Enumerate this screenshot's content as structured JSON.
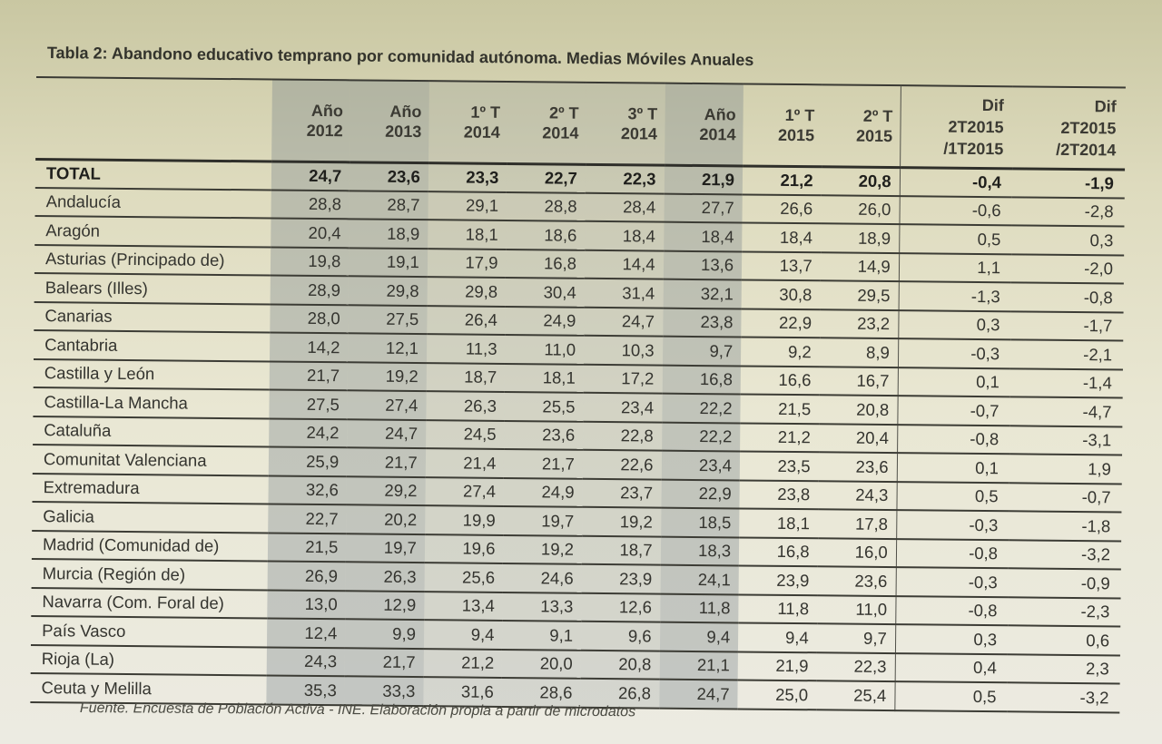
{
  "title": "Tabla 2: Abandono educativo temprano por comunidad autónoma. Medias Móviles Anuales",
  "columns": [
    {
      "l1": "Año",
      "l2": "2012"
    },
    {
      "l1": "Año",
      "l2": "2013"
    },
    {
      "l1": "1º T",
      "l2": "2014"
    },
    {
      "l1": "2º T",
      "l2": "2014"
    },
    {
      "l1": "3º T",
      "l2": "2014"
    },
    {
      "l1": "Año",
      "l2": "2014"
    },
    {
      "l1": "1º T",
      "l2": "2015"
    },
    {
      "l1": "2º T",
      "l2": "2015"
    }
  ],
  "dif_columns": [
    {
      "l1": "Dif",
      "l2": "2T2015",
      "l3": "/1T2015"
    },
    {
      "l1": "Dif",
      "l2": "2T2015",
      "l3": "/2T2014"
    }
  ],
  "rows": [
    {
      "name": "TOTAL",
      "v": [
        "24,7",
        "23,6",
        "23,3",
        "22,7",
        "22,3",
        "21,9",
        "21,2",
        "20,8",
        "-0,4",
        "-1,9"
      ]
    },
    {
      "name": "Andalucía",
      "v": [
        "28,8",
        "28,7",
        "29,1",
        "28,8",
        "28,4",
        "27,7",
        "26,6",
        "26,0",
        "-0,6",
        "-2,8"
      ]
    },
    {
      "name": "Aragón",
      "v": [
        "20,4",
        "18,9",
        "18,1",
        "18,6",
        "18,4",
        "18,4",
        "18,4",
        "18,9",
        "0,5",
        "0,3"
      ]
    },
    {
      "name": "Asturias (Principado de)",
      "v": [
        "19,8",
        "19,1",
        "17,9",
        "16,8",
        "14,4",
        "13,6",
        "13,7",
        "14,9",
        "1,1",
        "-2,0"
      ]
    },
    {
      "name": "Balears (Illes)",
      "v": [
        "28,9",
        "29,8",
        "29,8",
        "30,4",
        "31,4",
        "32,1",
        "30,8",
        "29,5",
        "-1,3",
        "-0,8"
      ]
    },
    {
      "name": "Canarias",
      "v": [
        "28,0",
        "27,5",
        "26,4",
        "24,9",
        "24,7",
        "23,8",
        "22,9",
        "23,2",
        "0,3",
        "-1,7"
      ]
    },
    {
      "name": "Cantabria",
      "v": [
        "14,2",
        "12,1",
        "11,3",
        "11,0",
        "10,3",
        "9,7",
        "9,2",
        "8,9",
        "-0,3",
        "-2,1"
      ]
    },
    {
      "name": "Castilla y León",
      "v": [
        "21,7",
        "19,2",
        "18,7",
        "18,1",
        "17,2",
        "16,8",
        "16,6",
        "16,7",
        "0,1",
        "-1,4"
      ]
    },
    {
      "name": "Castilla-La Mancha",
      "v": [
        "27,5",
        "27,4",
        "26,3",
        "25,5",
        "23,4",
        "22,2",
        "21,5",
        "20,8",
        "-0,7",
        "-4,7"
      ]
    },
    {
      "name": "Cataluña",
      "v": [
        "24,2",
        "24,7",
        "24,5",
        "23,6",
        "22,8",
        "22,2",
        "21,2",
        "20,4",
        "-0,8",
        "-3,1"
      ]
    },
    {
      "name": "Comunitat Valenciana",
      "v": [
        "25,9",
        "21,7",
        "21,4",
        "21,7",
        "22,6",
        "23,4",
        "23,5",
        "23,6",
        "0,1",
        "1,9"
      ]
    },
    {
      "name": "Extremadura",
      "v": [
        "32,6",
        "29,2",
        "27,4",
        "24,9",
        "23,7",
        "22,9",
        "23,8",
        "24,3",
        "0,5",
        "-0,7"
      ]
    },
    {
      "name": "Galicia",
      "v": [
        "22,7",
        "20,2",
        "19,9",
        "19,7",
        "19,2",
        "18,5",
        "18,1",
        "17,8",
        "-0,3",
        "-1,8"
      ]
    },
    {
      "name": "Madrid (Comunidad de)",
      "v": [
        "21,5",
        "19,7",
        "19,6",
        "19,2",
        "18,7",
        "18,3",
        "16,8",
        "16,0",
        "-0,8",
        "-3,2"
      ]
    },
    {
      "name": "Murcia (Región de)",
      "v": [
        "26,9",
        "26,3",
        "25,6",
        "24,6",
        "23,9",
        "24,1",
        "23,9",
        "23,6",
        "-0,3",
        "-0,9"
      ]
    },
    {
      "name": "Navarra (Com. Foral de)",
      "v": [
        "13,0",
        "12,9",
        "13,4",
        "13,3",
        "12,6",
        "11,8",
        "11,8",
        "11,0",
        "-0,8",
        "-2,3"
      ]
    },
    {
      "name": "País Vasco",
      "v": [
        "12,4",
        "9,9",
        "9,4",
        "9,1",
        "9,6",
        "9,4",
        "9,4",
        "9,7",
        "0,3",
        "0,6"
      ]
    },
    {
      "name": "Rioja (La)",
      "v": [
        "24,3",
        "21,7",
        "21,2",
        "20,0",
        "20,8",
        "21,1",
        "21,9",
        "22,3",
        "0,4",
        "2,3"
      ]
    },
    {
      "name": "Ceuta y Melilla",
      "v": [
        "35,3",
        "33,3",
        "31,6",
        "28,6",
        "26,8",
        "24,7",
        "25,0",
        "25,4",
        "0,5",
        "-3,2"
      ]
    }
  ],
  "source": "Fuente. Encuesta de Población Activa - INE. Elaboración propia a partir de microdatos"
}
